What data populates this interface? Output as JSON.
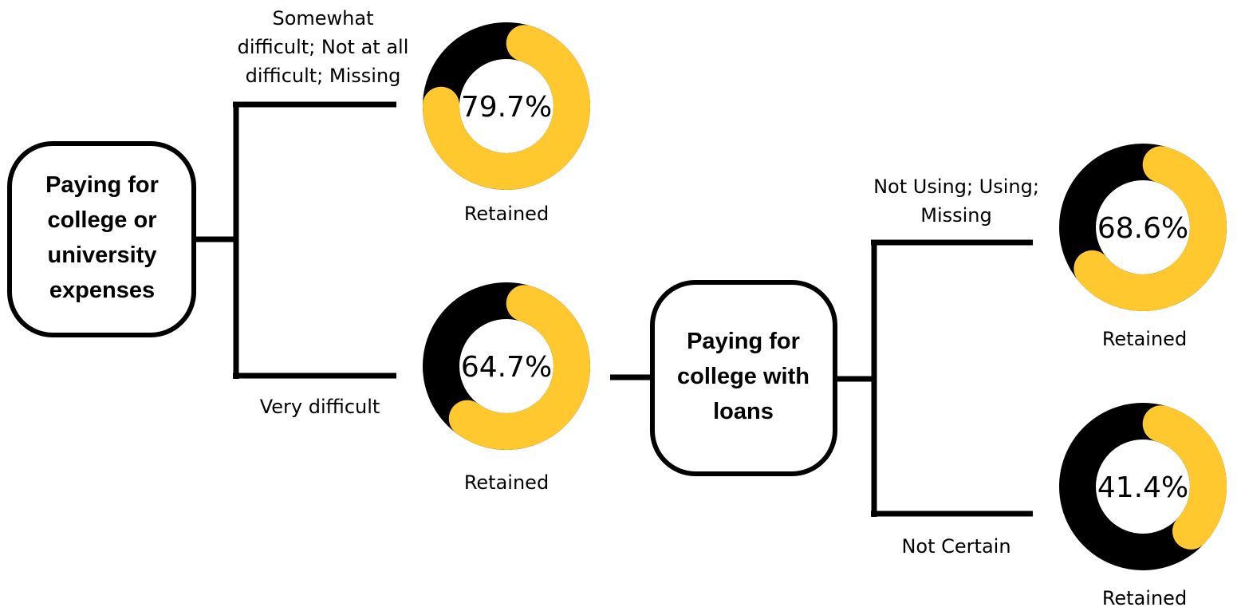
{
  "colors": {
    "retained": "#FFC82E",
    "not_retained": "#000000",
    "line": "#000000",
    "box_fill": "#ffffff"
  },
  "nodes": {
    "root": {
      "lines": [
        "Paying for",
        "college or",
        "university",
        "expenses"
      ]
    },
    "loans": {
      "lines": [
        "Paying for",
        "college with",
        "loans"
      ]
    }
  },
  "branches": {
    "top": {
      "lines": [
        "Somewhat",
        "difficult; Not at all",
        "difficult; Missing"
      ]
    },
    "bottom": {
      "lines": [
        "Very difficult"
      ]
    },
    "loans_top": {
      "lines": [
        "Not Using; Using;",
        "Missing"
      ]
    },
    "loans_bottom": {
      "lines": [
        "Not Certain"
      ]
    }
  },
  "chart_data": [
    {
      "type": "pie",
      "id": "donut-1",
      "value": 79.7,
      "label": "79.7%",
      "caption": "Retained"
    },
    {
      "type": "pie",
      "id": "donut-2",
      "value": 64.7,
      "label": "64.7%",
      "caption": "Retained"
    },
    {
      "type": "pie",
      "id": "donut-3",
      "value": 68.6,
      "label": "68.6%",
      "caption": "Retained"
    },
    {
      "type": "pie",
      "id": "donut-4",
      "value": 41.4,
      "label": "41.4%",
      "caption": "Retained"
    }
  ]
}
